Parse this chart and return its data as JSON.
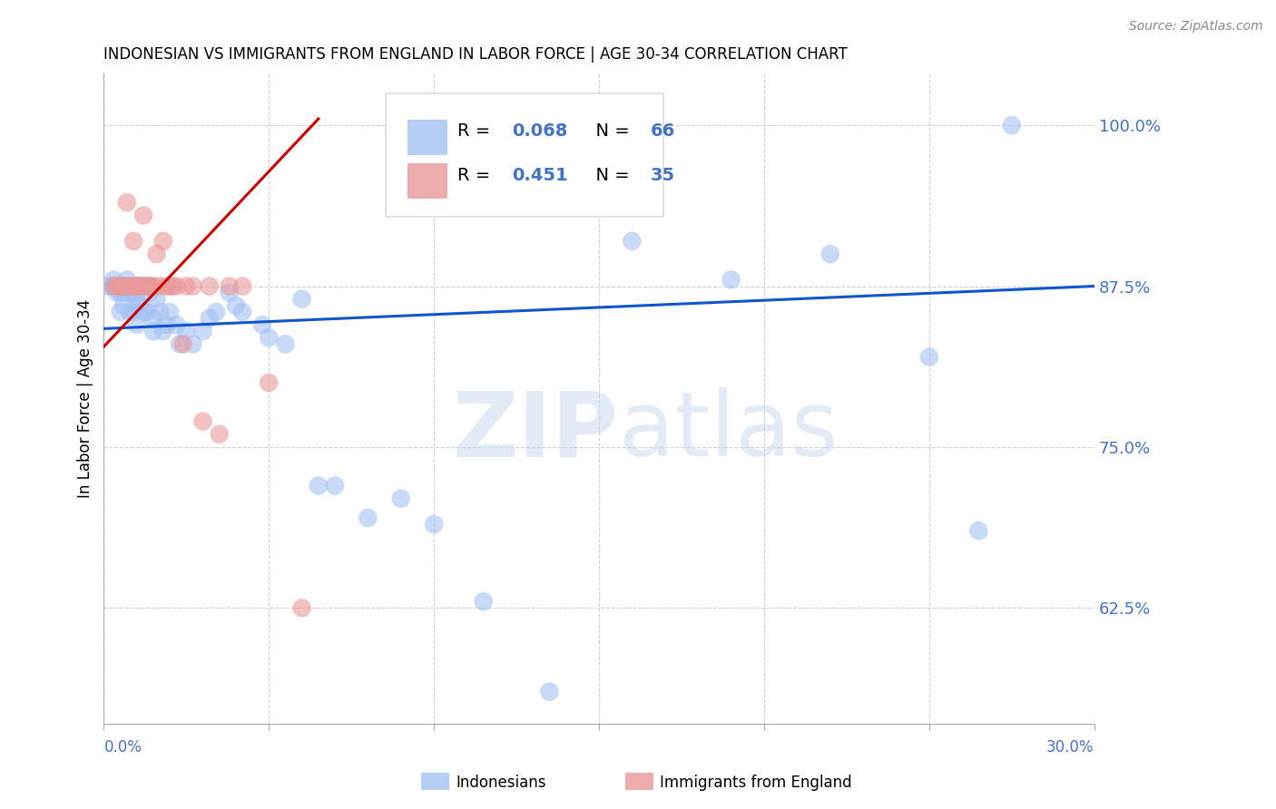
{
  "title": "INDONESIAN VS IMMIGRANTS FROM ENGLAND IN LABOR FORCE | AGE 30-34 CORRELATION CHART",
  "source": "Source: ZipAtlas.com",
  "ylabel": "In Labor Force | Age 30-34",
  "yticks": [
    0.625,
    0.75,
    0.875,
    1.0
  ],
  "ytick_labels": [
    "62.5%",
    "75.0%",
    "87.5%",
    "100.0%"
  ],
  "xlim": [
    0.0,
    0.3
  ],
  "ylim": [
    0.535,
    1.04
  ],
  "legend_r1": "0.068",
  "legend_n1": "66",
  "legend_r2": "0.451",
  "legend_n2": "35",
  "blue_color": "#a4c2f4",
  "pink_color": "#ea9999",
  "blue_line_color": "#1155cc",
  "pink_line_color": "#cc0000",
  "blue_trend_x": [
    0.0,
    0.3
  ],
  "blue_trend_y": [
    0.842,
    0.875
  ],
  "pink_trend_x": [
    0.0,
    0.065
  ],
  "pink_trend_y": [
    0.828,
    1.005
  ],
  "indonesian_x": [
    0.001,
    0.002,
    0.003,
    0.003,
    0.004,
    0.004,
    0.005,
    0.005,
    0.005,
    0.006,
    0.006,
    0.006,
    0.007,
    0.007,
    0.007,
    0.008,
    0.008,
    0.008,
    0.009,
    0.009,
    0.009,
    0.01,
    0.01,
    0.01,
    0.01,
    0.011,
    0.011,
    0.012,
    0.012,
    0.013,
    0.013,
    0.014,
    0.015,
    0.015,
    0.016,
    0.017,
    0.018,
    0.019,
    0.02,
    0.022,
    0.023,
    0.025,
    0.027,
    0.03,
    0.032,
    0.034,
    0.038,
    0.04,
    0.042,
    0.048,
    0.05,
    0.055,
    0.06,
    0.065,
    0.07,
    0.08,
    0.09,
    0.1,
    0.115,
    0.135,
    0.16,
    0.19,
    0.22,
    0.25,
    0.265,
    0.275
  ],
  "indonesian_y": [
    0.875,
    0.875,
    0.875,
    0.88,
    0.875,
    0.87,
    0.875,
    0.855,
    0.87,
    0.875,
    0.87,
    0.86,
    0.875,
    0.87,
    0.88,
    0.875,
    0.87,
    0.855,
    0.875,
    0.87,
    0.855,
    0.875,
    0.87,
    0.86,
    0.845,
    0.875,
    0.86,
    0.875,
    0.855,
    0.875,
    0.855,
    0.87,
    0.85,
    0.84,
    0.865,
    0.855,
    0.84,
    0.845,
    0.855,
    0.845,
    0.83,
    0.84,
    0.83,
    0.84,
    0.85,
    0.855,
    0.87,
    0.86,
    0.855,
    0.845,
    0.835,
    0.83,
    0.865,
    0.72,
    0.72,
    0.695,
    0.71,
    0.69,
    0.63,
    0.56,
    0.91,
    0.88,
    0.9,
    0.82,
    0.685,
    1.0
  ],
  "england_x": [
    0.003,
    0.004,
    0.005,
    0.006,
    0.007,
    0.007,
    0.008,
    0.009,
    0.009,
    0.01,
    0.01,
    0.011,
    0.011,
    0.012,
    0.013,
    0.014,
    0.014,
    0.015,
    0.016,
    0.017,
    0.018,
    0.019,
    0.02,
    0.021,
    0.022,
    0.024,
    0.025,
    0.027,
    0.03,
    0.032,
    0.035,
    0.038,
    0.042,
    0.05,
    0.06
  ],
  "england_y": [
    0.875,
    0.875,
    0.875,
    0.875,
    0.875,
    0.94,
    0.875,
    0.91,
    0.875,
    0.875,
    0.875,
    0.875,
    0.875,
    0.93,
    0.875,
    0.875,
    0.875,
    0.875,
    0.9,
    0.875,
    0.91,
    0.875,
    0.875,
    0.875,
    0.875,
    0.83,
    0.875,
    0.875,
    0.77,
    0.875,
    0.76,
    0.875,
    0.875,
    0.8,
    0.625
  ]
}
